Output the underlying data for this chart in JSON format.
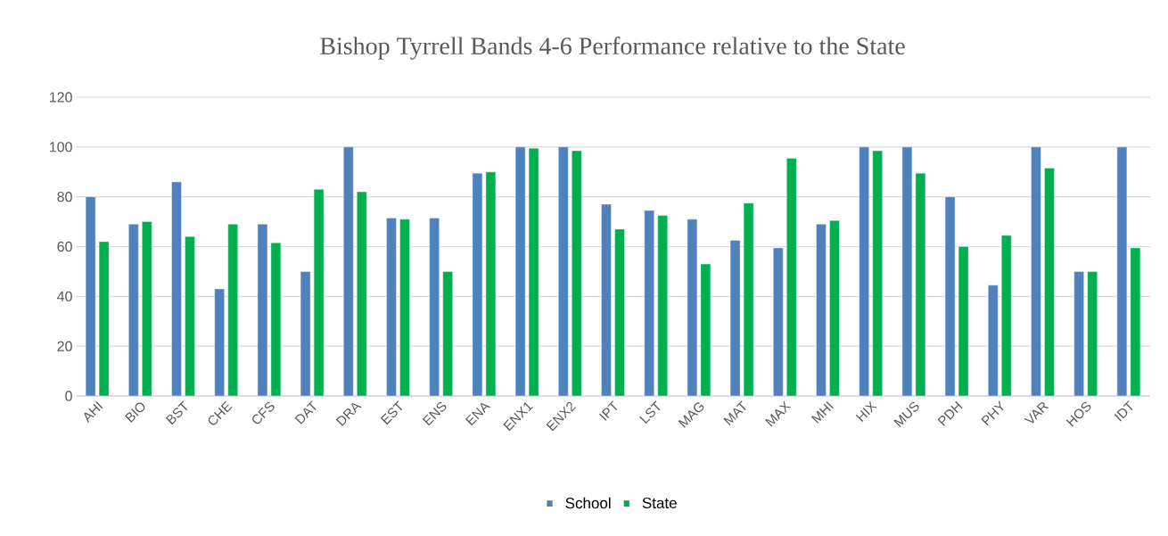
{
  "chart_data": {
    "type": "bar",
    "title": "Bishop Tyrrell Bands 4-6 Performance relative to the State",
    "categories": [
      "AHI",
      "BIO",
      "BST",
      "CHE",
      "CFS",
      "DAT",
      "DRA",
      "EST",
      "ENS",
      "ENA",
      "ENX1",
      "ENX2",
      "IPT",
      "LST",
      "MAG",
      "MAT",
      "MAX",
      "MHI",
      "HIX",
      "MUS",
      "PDH",
      "PHY",
      "VAR",
      "HOS",
      "IDT"
    ],
    "series": [
      {
        "name": "School",
        "color": "#4f81bd",
        "values": [
          80,
          69,
          86,
          43,
          69,
          50,
          100,
          71.5,
          71.5,
          89.5,
          100,
          100,
          77,
          74.5,
          71,
          62.5,
          59.5,
          69,
          100,
          100,
          80,
          44.5,
          100,
          50,
          100
        ]
      },
      {
        "name": "State",
        "color": "#00b050",
        "values": [
          62,
          70,
          64,
          69,
          61.5,
          83,
          82,
          71,
          50,
          90,
          99.5,
          98.5,
          67,
          72.5,
          53,
          77.5,
          95.5,
          70.5,
          98.5,
          89.5,
          60,
          64.5,
          91.5,
          50,
          59.5
        ]
      }
    ],
    "ylim": [
      0,
      120
    ],
    "yticks": [
      0,
      20,
      40,
      60,
      80,
      100,
      120
    ],
    "grid": "y",
    "legend": "bottom"
  }
}
